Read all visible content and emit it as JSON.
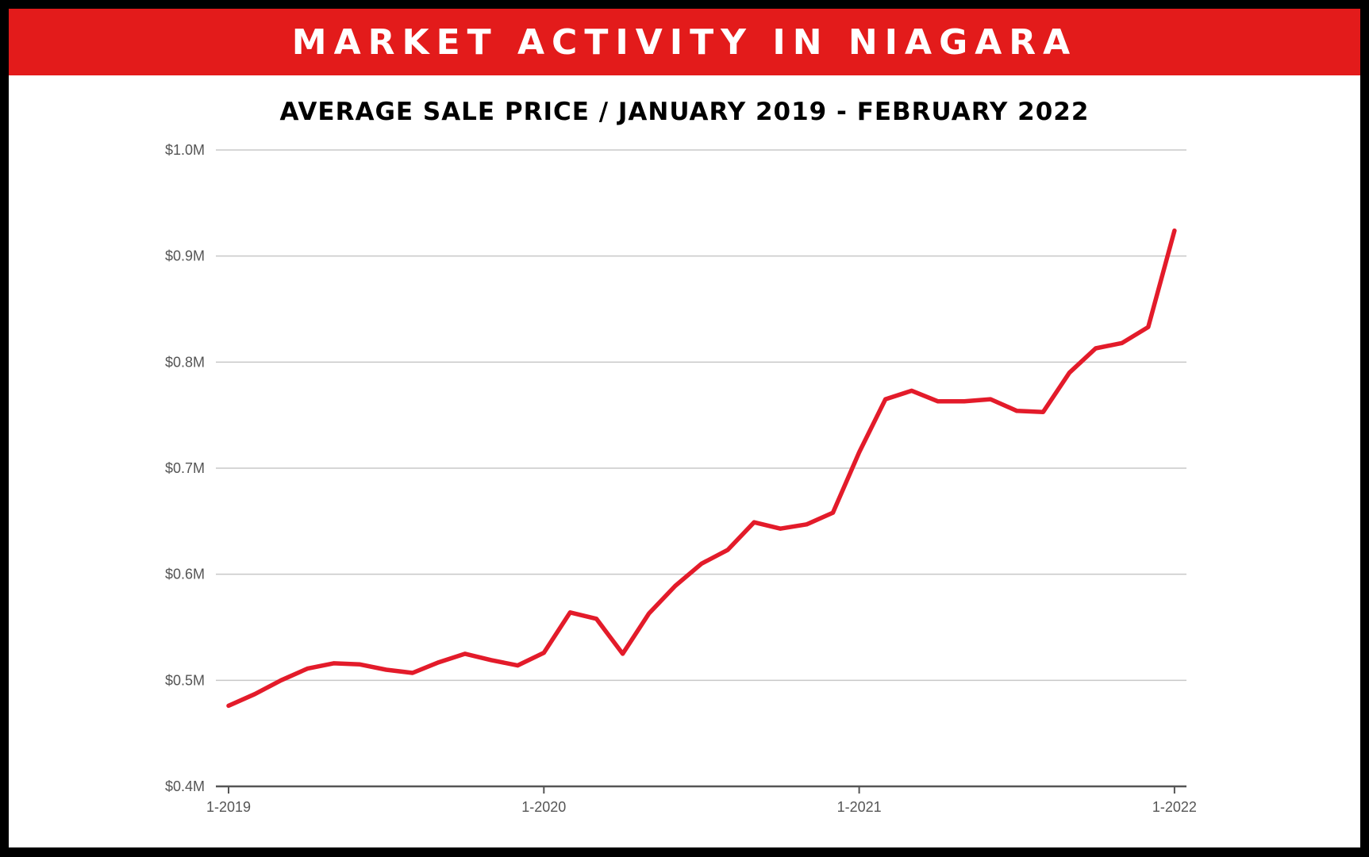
{
  "banner": {
    "title": "MARKET ACTIVITY IN NIAGARA"
  },
  "chart_data": {
    "type": "line",
    "title": "AVERAGE SALE PRICE / JANUARY 2019 - FEBRUARY 2022",
    "xlabel": "",
    "ylabel": "",
    "ylim": [
      0.4,
      1.0
    ],
    "y_ticks": [
      "$0.4M",
      "$0.5M",
      "$0.6M",
      "$0.7M",
      "$0.8M",
      "$0.9M",
      "$1.0M"
    ],
    "y_tick_values": [
      0.4,
      0.5,
      0.6,
      0.7,
      0.8,
      0.9,
      1.0
    ],
    "x_ticks": [
      "1-2019",
      "1-2020",
      "1-2021",
      "1-2022"
    ],
    "x_tick_values": [
      "2019-01",
      "2020-01",
      "2021-01",
      "2022-01"
    ],
    "grid": true,
    "line_color": "#e31b2a",
    "series": [
      {
        "x": [
          "2019-01",
          "2019-02",
          "2019-03",
          "2019-04",
          "2019-05",
          "2019-06",
          "2019-07",
          "2019-08",
          "2019-09",
          "2019-10",
          "2019-11",
          "2019-12",
          "2020-01",
          "2020-02",
          "2020-03",
          "2020-04",
          "2020-05",
          "2020-06",
          "2020-07",
          "2020-08",
          "2020-09",
          "2020-10",
          "2020-11",
          "2020-12",
          "2021-01",
          "2021-02",
          "2021-03",
          "2021-04",
          "2021-05",
          "2021-06",
          "2021-07",
          "2021-08",
          "2021-09",
          "2021-10",
          "2021-11",
          "2021-12",
          "2022-01",
          "2022-02"
        ],
        "values": [
          0.476,
          0.487,
          0.5,
          0.511,
          0.516,
          0.515,
          0.51,
          0.507,
          0.517,
          0.525,
          0.519,
          0.514,
          0.526,
          0.564,
          0.558,
          0.525,
          0.563,
          0.589,
          0.61,
          0.623,
          0.649,
          0.643,
          0.647,
          0.658,
          0.715,
          0.765,
          0.773,
          0.763,
          0.763,
          0.765,
          0.754,
          0.753,
          0.79,
          0.813,
          0.818,
          0.833,
          0.924,
          null
        ]
      }
    ]
  }
}
